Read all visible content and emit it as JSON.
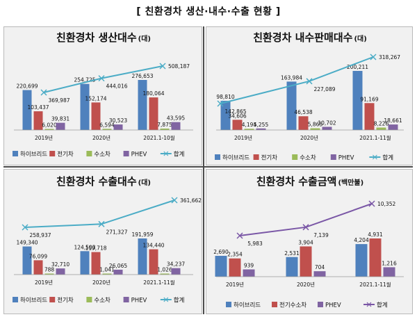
{
  "title": "[ 친환경차 생산·내수·수출 현황 ]",
  "colors": {
    "hybrid": "#4f81bd",
    "ev": "#c0504d",
    "fcev": "#9bbb59",
    "phev": "#8064a2",
    "total": "#4bacc6",
    "total_export_amount": "#7a57a6",
    "panel_bg": "#f1f1f1"
  },
  "chart_data": [
    {
      "type": "bar",
      "title": "친환경차 생산대수",
      "title_unit": "(대)",
      "categories": [
        "2019년",
        "2020년",
        "2021.1-10월"
      ],
      "series": [
        {
          "name": "하이브리드",
          "values": [
            220699,
            254725,
            276653
          ],
          "labels": [
            "220,699",
            "254,725",
            "276,653"
          ]
        },
        {
          "name": "전기차",
          "values": [
            103437,
            152174,
            180064
          ],
          "labels": [
            "103,437",
            "152,174",
            "180,064"
          ]
        },
        {
          "name": "수소차",
          "values": [
            6020,
            6594,
            7875
          ],
          "labels": [
            "6,020",
            "6,594",
            "7,875"
          ]
        },
        {
          "name": "PHEV",
          "values": [
            39831,
            30523,
            43595
          ],
          "labels": [
            "39,831",
            "30,523",
            "43,595"
          ]
        }
      ],
      "line": {
        "name": "합계",
        "values": [
          369987,
          444016,
          508187
        ],
        "labels": [
          "369,987",
          "444,016",
          "508,187"
        ]
      },
      "legend": [
        "하이브리드",
        "전기차",
        "수소차",
        "PHEV",
        "합계"
      ],
      "legend_position": "bottom"
    },
    {
      "type": "bar",
      "title": "친환경차 내수판매대수",
      "title_unit": "(대)",
      "categories": [
        "2019년",
        "2020년",
        "2021.1-11월"
      ],
      "series": [
        {
          "name": "하이브리드",
          "values": [
            98810,
            163984,
            200211
          ],
          "labels": [
            "98,810",
            "163,984",
            "200,211"
          ]
        },
        {
          "name": "전기차",
          "values": [
            34606,
            46538,
            91169
          ],
          "labels": [
            "34,606",
            "46,538",
            "91,169"
          ]
        },
        {
          "name": "수소차",
          "values": [
            4194,
            5865,
            8226
          ],
          "labels": [
            "4,194",
            "5,865",
            "8,226"
          ]
        },
        {
          "name": "PHEV",
          "values": [
            5255,
            10702,
            18661
          ],
          "labels": [
            "5,255",
            "10,702",
            "18,661"
          ]
        }
      ],
      "line": {
        "name": "합계",
        "values": [
          142865,
          227089,
          318267
        ],
        "labels": [
          "142,865",
          "227,089",
          "318,267"
        ]
      },
      "legend": [
        "하이브리드",
        "전기차",
        "수소차",
        "PHEV",
        "합계"
      ],
      "legend_position": "bottom"
    },
    {
      "type": "bar",
      "title": "친환경차 수출대수",
      "title_unit": "(대)",
      "categories": [
        "2019년",
        "2020년",
        "2021.1-11월"
      ],
      "series": [
        {
          "name": "하이브리드",
          "values": [
            149340,
            124503,
            191959
          ],
          "labels": [
            "149,340",
            "124,503",
            "191,959"
          ]
        },
        {
          "name": "전기차",
          "values": [
            76099,
            119718,
            134440
          ],
          "labels": [
            "76,099",
            "119,718",
            "134,440"
          ]
        },
        {
          "name": "수소차",
          "values": [
            788,
            1041,
            1026
          ],
          "labels": [
            "788",
            "1,041",
            "1,026"
          ]
        },
        {
          "name": "PHEV",
          "values": [
            32710,
            26065,
            34237
          ],
          "labels": [
            "32,710",
            "26,065",
            "34,237"
          ]
        }
      ],
      "line": {
        "name": "합계",
        "values": [
          258937,
          271327,
          361662
        ],
        "labels": [
          "258,937",
          "271,327",
          "361,662"
        ]
      },
      "legend": [
        "하이브리드",
        "전기차",
        "수소차",
        "PHEV",
        "합계"
      ],
      "legend_position": "bottom"
    },
    {
      "type": "bar",
      "title": "친환경차 수출금액",
      "title_unit": "(백만불)",
      "categories": [
        "2019년",
        "2020년",
        "2021.1-11월"
      ],
      "series": [
        {
          "name": "하이브리드",
          "values": [
            2690,
            2531,
            4204
          ],
          "labels": [
            "2,690",
            "2,531",
            "4,204"
          ]
        },
        {
          "name": "전기수소차",
          "values": [
            2354,
            3904,
            4931
          ],
          "labels": [
            "2,354",
            "3,904",
            "4,931"
          ]
        },
        {
          "name": "PHEV",
          "values": [
            939,
            704,
            1216
          ],
          "labels": [
            "939",
            "704",
            "1,216"
          ]
        }
      ],
      "line": {
        "name": "합계",
        "values": [
          5983,
          7139,
          10352
        ],
        "labels": [
          "5,983",
          "7,139",
          "10,352"
        ]
      },
      "legend": [
        "하이브리드",
        "전기수소차",
        "PHEV",
        "합계"
      ],
      "legend_position": "bottom"
    }
  ]
}
